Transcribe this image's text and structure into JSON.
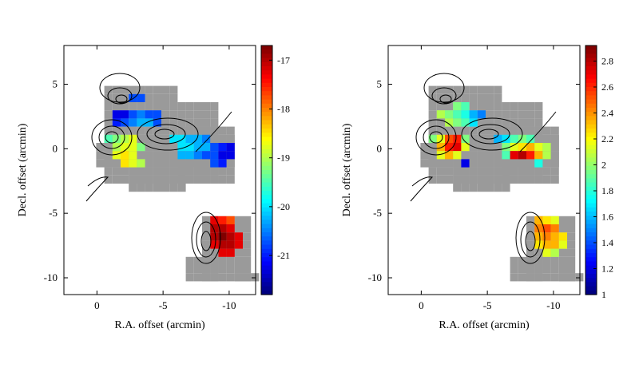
{
  "chart_data": [
    {
      "type": "heatmap",
      "panel": "left",
      "xlabel": "R.A. offset (arcmin)",
      "ylabel": "Decl. offset (arcmin)",
      "xlim": [
        2.5,
        -12
      ],
      "ylim": [
        -11.3,
        8
      ],
      "x_ticks": [
        0,
        -5,
        -10
      ],
      "x_tick_labels": [
        "0",
        "-5",
        "-10"
      ],
      "y_ticks": [
        5,
        0,
        -5,
        -10
      ],
      "y_tick_labels": [
        "5",
        "0",
        "-5",
        "-10"
      ],
      "colorbar": {
        "range": [
          -21.8,
          -16.7
        ],
        "ticks": [
          -17,
          -18,
          -19,
          -20,
          -21
        ],
        "tick_labels": [
          "-17",
          "-18",
          "-19",
          "-20",
          "-21"
        ]
      },
      "grid": false,
      "no_data_color": "#9a9a9a"
    },
    {
      "type": "heatmap",
      "panel": "right",
      "xlabel": "R.A. offset (arcmin)",
      "ylabel": "Decl. offset (arcmin)",
      "xlim": [
        2.5,
        -12
      ],
      "ylim": [
        -11.3,
        8
      ],
      "x_ticks": [
        0,
        -5,
        -10
      ],
      "x_tick_labels": [
        "0",
        "-5",
        "-10"
      ],
      "y_ticks": [
        5,
        0,
        -5,
        -10
      ],
      "y_tick_labels": [
        "5",
        "0",
        "-5",
        "-10"
      ],
      "colorbar": {
        "range": [
          1.0,
          2.92
        ],
        "ticks": [
          2.8,
          2.6,
          2.4,
          2.2,
          2,
          1.8,
          1.6,
          1.4,
          1.2,
          1
        ],
        "tick_labels": [
          "2.8",
          "2.6",
          "2.4",
          "2.2",
          "2",
          "1.8",
          "1.6",
          "1.4",
          "1.2",
          "1"
        ]
      },
      "grid": false,
      "no_data_color": "#9a9a9a"
    }
  ]
}
